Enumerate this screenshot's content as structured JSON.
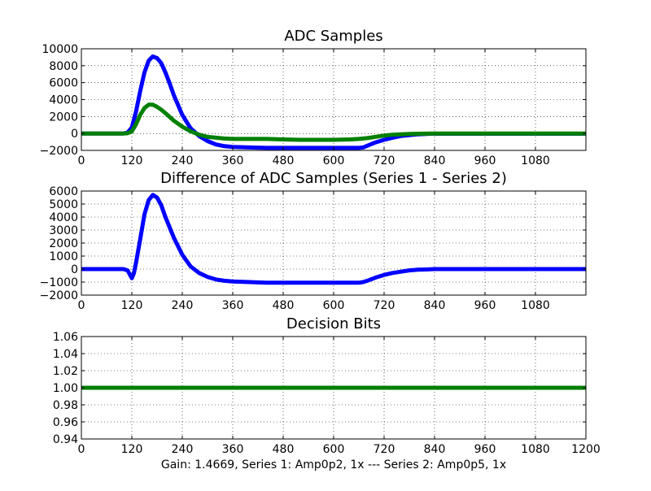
{
  "caption": "Gain: 1.4669, Series 1: Amp0p2, 1x --- Series 2: Amp0p5, 1x",
  "chart_data": [
    {
      "type": "line",
      "title": "ADC Samples",
      "xlabel": "",
      "ylabel": "",
      "xlim": [
        0,
        1200
      ],
      "ylim": [
        -2000,
        10000
      ],
      "x_ticks": [
        0,
        120,
        240,
        360,
        480,
        600,
        720,
        840,
        960,
        1080
      ],
      "x_tick_labels": [
        "0",
        "120",
        "240",
        "360",
        "480",
        "600",
        "720",
        "840",
        "960",
        "1080"
      ],
      "y_ticks": [
        -2000,
        0,
        2000,
        4000,
        6000,
        8000,
        10000
      ],
      "y_tick_labels": [
        "−2000",
        "0",
        "2000",
        "4000",
        "6000",
        "8000",
        "10000"
      ],
      "grid": true,
      "series": [
        {
          "color": "#0000ff",
          "x": [
            0,
            100,
            110,
            120,
            130,
            140,
            150,
            160,
            170,
            180,
            190,
            200,
            210,
            220,
            240,
            260,
            280,
            300,
            320,
            340,
            360,
            400,
            440,
            480,
            520,
            560,
            600,
            640,
            660,
            670,
            680,
            700,
            720,
            740,
            760,
            780,
            800,
            820,
            830,
            1200
          ],
          "y": [
            0,
            0,
            100,
            700,
            2600,
            5000,
            7200,
            8600,
            9100,
            8900,
            8300,
            7200,
            5900,
            4500,
            2200,
            600,
            -300,
            -900,
            -1300,
            -1500,
            -1600,
            -1650,
            -1700,
            -1700,
            -1700,
            -1700,
            -1700,
            -1700,
            -1700,
            -1650,
            -1450,
            -1050,
            -750,
            -500,
            -300,
            -200,
            -100,
            -50,
            -30,
            -30
          ]
        },
        {
          "color": "#008000",
          "x": [
            0,
            100,
            110,
            120,
            130,
            140,
            150,
            160,
            170,
            180,
            190,
            200,
            210,
            220,
            240,
            260,
            280,
            300,
            320,
            340,
            360,
            400,
            440,
            480,
            520,
            560,
            600,
            640,
            660,
            680,
            700,
            720,
            740,
            760,
            780,
            800,
            840,
            1200
          ],
          "y": [
            0,
            0,
            30,
            250,
            1100,
            2200,
            3000,
            3400,
            3400,
            3150,
            2800,
            2400,
            1950,
            1500,
            800,
            250,
            -150,
            -400,
            -500,
            -600,
            -650,
            -650,
            -650,
            -700,
            -750,
            -750,
            -750,
            -700,
            -650,
            -550,
            -400,
            -250,
            -150,
            -100,
            -50,
            -30,
            0,
            0
          ]
        }
      ]
    },
    {
      "type": "line",
      "title": "Difference of ADC Samples (Series 1 - Series 2)",
      "xlabel": "",
      "ylabel": "",
      "xlim": [
        0,
        1200
      ],
      "ylim": [
        -2000,
        6000
      ],
      "x_ticks": [
        0,
        120,
        240,
        360,
        480,
        600,
        720,
        840,
        960,
        1080
      ],
      "x_tick_labels": [
        "0",
        "120",
        "240",
        "360",
        "480",
        "600",
        "720",
        "840",
        "960",
        "1080"
      ],
      "y_ticks": [
        -2000,
        -1000,
        0,
        1000,
        2000,
        3000,
        4000,
        5000,
        6000
      ],
      "y_tick_labels": [
        "−2000",
        "−1000",
        "0",
        "1000",
        "2000",
        "3000",
        "4000",
        "5000",
        "6000"
      ],
      "grid": true,
      "series": [
        {
          "color": "#0000ff",
          "x": [
            0,
            100,
            110,
            115,
            120,
            125,
            130,
            140,
            150,
            160,
            170,
            180,
            190,
            200,
            210,
            220,
            240,
            260,
            280,
            300,
            320,
            340,
            360,
            400,
            440,
            480,
            520,
            560,
            600,
            640,
            660,
            670,
            680,
            700,
            720,
            740,
            760,
            780,
            800,
            820,
            840,
            1200
          ],
          "y": [
            0,
            0,
            -100,
            -400,
            -700,
            -300,
            500,
            2300,
            4200,
            5300,
            5700,
            5500,
            4900,
            4000,
            3200,
            2400,
            1100,
            200,
            -300,
            -600,
            -800,
            -900,
            -950,
            -1000,
            -1050,
            -1050,
            -1050,
            -1050,
            -1050,
            -1050,
            -1050,
            -1000,
            -900,
            -650,
            -450,
            -300,
            -200,
            -100,
            -50,
            -30,
            0,
            0
          ]
        }
      ]
    },
    {
      "type": "line",
      "title": "Decision Bits",
      "xlabel": "",
      "ylabel": "",
      "xlim": [
        0,
        1200
      ],
      "ylim": [
        0.94,
        1.06
      ],
      "x_ticks": [
        0,
        120,
        240,
        360,
        480,
        600,
        720,
        840,
        960,
        1080,
        1200
      ],
      "x_tick_labels": [
        "0",
        "120",
        "240",
        "360",
        "480",
        "600",
        "720",
        "840",
        "960",
        "1080",
        "1200"
      ],
      "y_ticks": [
        0.94,
        0.96,
        0.98,
        1.0,
        1.02,
        1.04,
        1.06
      ],
      "y_tick_labels": [
        "0.94",
        "0.96",
        "0.98",
        "1.00",
        "1.02",
        "1.04",
        "1.06"
      ],
      "grid": true,
      "series": [
        {
          "color": "#008000",
          "x": [
            0,
            1200
          ],
          "y": [
            1.0,
            1.0
          ]
        }
      ]
    }
  ]
}
